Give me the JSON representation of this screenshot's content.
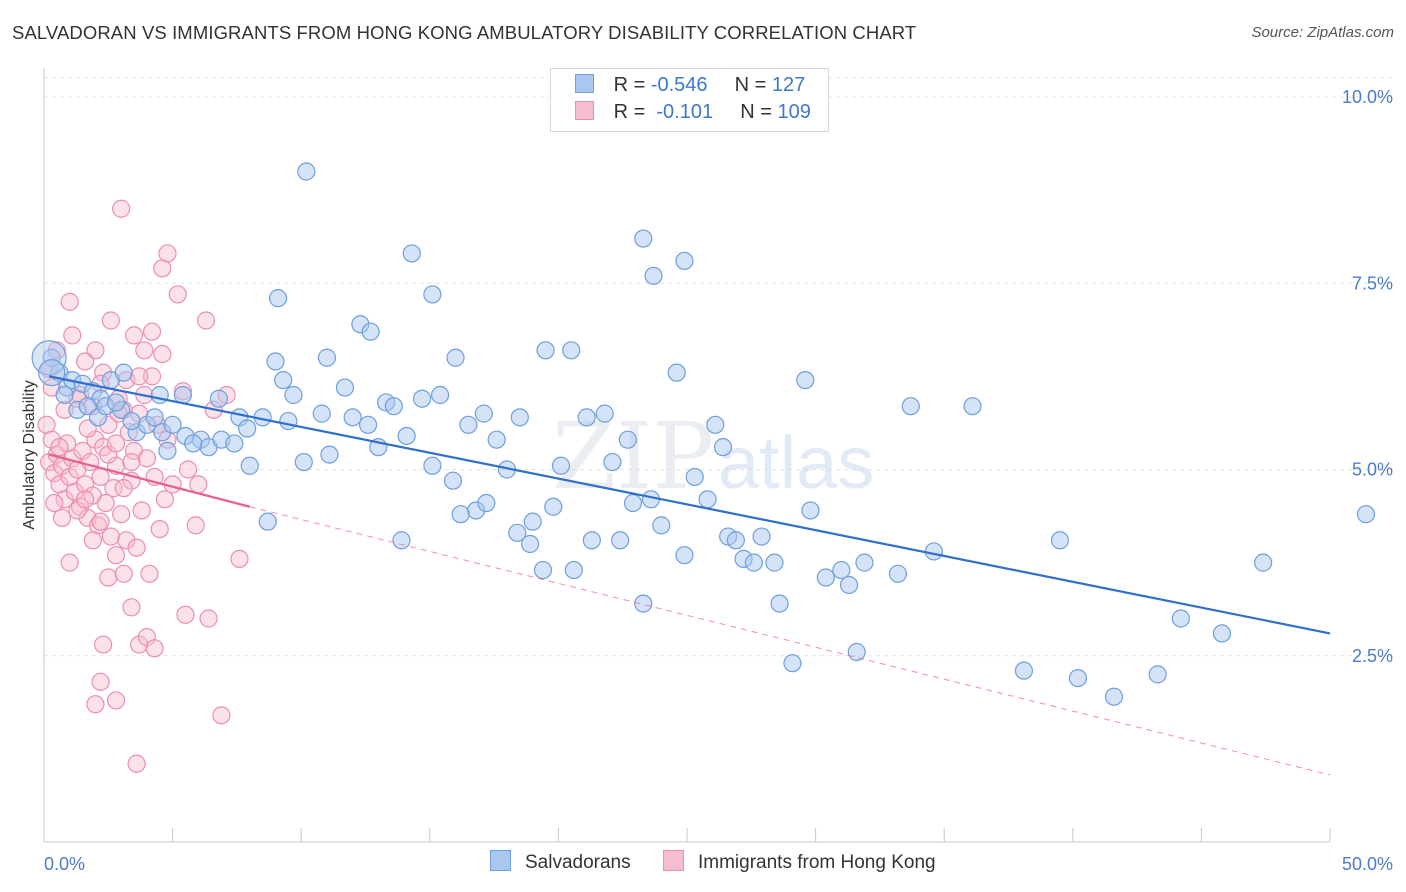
{
  "title": "SALVADORAN VS IMMIGRANTS FROM HONG KONG AMBULATORY DISABILITY CORRELATION CHART",
  "source": "Source: ZipAtlas.com",
  "watermark": {
    "zip": "ZIP",
    "atlas": "atlas"
  },
  "legend": {
    "rows": [
      {
        "r_label": "R =",
        "r_value": "-0.546",
        "n_label": "N =",
        "n_value": "127"
      },
      {
        "r_label": "R =",
        "r_value": " -0.101",
        "n_label": "N =",
        "n_value": "109"
      }
    ]
  },
  "bottom_legend": {
    "series1": "Salvadorans",
    "series2": "Immigrants from Hong Kong"
  },
  "colors": {
    "blue_fill": "#aac8ef",
    "blue_stroke": "#6f9fdc",
    "blue_line": "#2f6fce",
    "pink_fill": "#f6bcd0",
    "pink_stroke": "#ec8eb0",
    "pink_line": "#e8608f",
    "tick_text": "#4a7cc7",
    "grid": "#e4e4e4"
  },
  "chart_data": {
    "type": "scatter",
    "title": "SALVADORAN VS IMMIGRANTS FROM HONG KONG AMBULATORY DISABILITY CORRELATION CHART",
    "xlabel": "",
    "ylabel": "Ambulatory Disability",
    "xlim": [
      0,
      50
    ],
    "ylim": [
      0,
      10.5
    ],
    "x_tick_labels": [
      "0.0%",
      "50.0%"
    ],
    "y_ticks": [
      2.5,
      5.0,
      7.5,
      10.0
    ],
    "y_tick_labels": [
      "2.5%",
      "5.0%",
      "7.5%",
      "10.0%"
    ],
    "grid": true,
    "series": [
      {
        "name": "Salvadorans",
        "R": -0.546,
        "N": 127,
        "trend": {
          "x": [
            0.2,
            50
          ],
          "y": [
            6.25,
            2.8
          ]
        },
        "points": [
          [
            0.3,
            6.5
          ],
          [
            0.6,
            6.3
          ],
          [
            0.9,
            6.1
          ],
          [
            1.1,
            6.2
          ],
          [
            1.5,
            6.15
          ],
          [
            1.9,
            6.05
          ],
          [
            2.2,
            5.95
          ],
          [
            2.6,
            6.2
          ],
          [
            0.8,
            6.0
          ],
          [
            1.3,
            5.8
          ],
          [
            1.7,
            5.85
          ],
          [
            2.1,
            5.7
          ],
          [
            2.4,
            5.85
          ],
          [
            3.0,
            5.8
          ],
          [
            3.6,
            5.5
          ],
          [
            4.0,
            5.6
          ],
          [
            4.3,
            5.7
          ],
          [
            4.6,
            5.5
          ],
          [
            5.0,
            5.6
          ],
          [
            5.5,
            5.45
          ],
          [
            6.1,
            5.4
          ],
          [
            6.4,
            5.3
          ],
          [
            6.9,
            5.4
          ],
          [
            7.4,
            5.35
          ],
          [
            7.6,
            5.7
          ],
          [
            8.0,
            5.05
          ],
          [
            8.7,
            4.3
          ],
          [
            9.0,
            6.45
          ],
          [
            9.3,
            6.2
          ],
          [
            9.5,
            5.65
          ],
          [
            10.1,
            5.1
          ],
          [
            10.8,
            5.75
          ],
          [
            11.1,
            5.2
          ],
          [
            11.7,
            6.1
          ],
          [
            12.3,
            6.95
          ],
          [
            12.7,
            6.85
          ],
          [
            13.0,
            5.3
          ],
          [
            13.3,
            5.9
          ],
          [
            13.6,
            5.85
          ],
          [
            12.6,
            5.6
          ],
          [
            14.1,
            5.45
          ],
          [
            14.7,
            5.95
          ],
          [
            15.1,
            5.05
          ],
          [
            15.4,
            6.0
          ],
          [
            15.9,
            4.85
          ],
          [
            16.5,
            5.6
          ],
          [
            16.8,
            4.45
          ],
          [
            17.2,
            4.55
          ],
          [
            17.6,
            5.4
          ],
          [
            18.0,
            5.0
          ],
          [
            18.4,
            4.15
          ],
          [
            18.9,
            4.0
          ],
          [
            19.4,
            3.65
          ],
          [
            19.8,
            4.5
          ],
          [
            20.1,
            5.05
          ],
          [
            20.6,
            3.65
          ],
          [
            21.3,
            4.05
          ],
          [
            21.8,
            5.75
          ],
          [
            22.1,
            5.1
          ],
          [
            22.4,
            4.05
          ],
          [
            22.9,
            4.55
          ],
          [
            23.3,
            3.2
          ],
          [
            23.6,
            4.6
          ],
          [
            24.0,
            4.25
          ],
          [
            24.6,
            6.3
          ],
          [
            24.9,
            3.85
          ],
          [
            25.3,
            4.9
          ],
          [
            25.8,
            4.6
          ],
          [
            26.1,
            5.6
          ],
          [
            26.6,
            4.1
          ],
          [
            27.2,
            3.8
          ],
          [
            27.6,
            3.75
          ],
          [
            27.9,
            4.1
          ],
          [
            28.6,
            3.2
          ],
          [
            29.1,
            2.4
          ],
          [
            29.8,
            4.45
          ],
          [
            30.4,
            3.55
          ],
          [
            31.0,
            3.65
          ],
          [
            31.3,
            3.45
          ],
          [
            31.6,
            2.55
          ],
          [
            33.2,
            3.6
          ],
          [
            33.7,
            5.85
          ],
          [
            34.6,
            3.9
          ],
          [
            36.1,
            5.85
          ],
          [
            38.1,
            2.3
          ],
          [
            39.5,
            4.05
          ],
          [
            40.2,
            2.2
          ],
          [
            41.6,
            1.95
          ],
          [
            43.3,
            2.25
          ],
          [
            44.2,
            3.0
          ],
          [
            45.8,
            2.8
          ],
          [
            47.4,
            3.75
          ],
          [
            51.4,
            4.4
          ],
          [
            10.2,
            9.0
          ],
          [
            14.3,
            7.9
          ],
          [
            15.1,
            7.35
          ],
          [
            23.7,
            7.6
          ],
          [
            24.9,
            7.8
          ],
          [
            23.3,
            8.1
          ],
          [
            9.1,
            7.3
          ],
          [
            19.5,
            6.6
          ],
          [
            26.4,
            5.3
          ],
          [
            29.6,
            6.2
          ],
          [
            21.1,
            5.7
          ],
          [
            20.5,
            6.6
          ],
          [
            16.0,
            6.5
          ],
          [
            11.0,
            6.5
          ],
          [
            6.8,
            5.95
          ],
          [
            5.4,
            6.0
          ],
          [
            3.1,
            6.3
          ],
          [
            4.8,
            5.25
          ],
          [
            7.9,
            5.55
          ],
          [
            18.5,
            5.7
          ],
          [
            17.1,
            5.75
          ],
          [
            22.7,
            5.4
          ],
          [
            2.8,
            5.9
          ],
          [
            3.4,
            5.65
          ],
          [
            4.5,
            6.0
          ],
          [
            5.8,
            5.35
          ],
          [
            8.5,
            5.7
          ],
          [
            9.7,
            6.0
          ],
          [
            12.0,
            5.7
          ],
          [
            13.9,
            4.05
          ],
          [
            16.2,
            4.4
          ],
          [
            19.0,
            4.3
          ],
          [
            26.9,
            4.05
          ],
          [
            28.4,
            3.75
          ],
          [
            31.9,
            3.75
          ]
        ]
      },
      {
        "name": "Immigrants from Hong Kong",
        "R": -0.101,
        "N": 109,
        "trend_solid": {
          "x": [
            0.2,
            8.0
          ],
          "y": [
            5.2,
            4.5
          ]
        },
        "trend_dashed": {
          "x": [
            8.0,
            50
          ],
          "y": [
            4.5,
            0.9
          ]
        },
        "points": [
          [
            0.1,
            5.6
          ],
          [
            0.2,
            5.1
          ],
          [
            0.3,
            5.4
          ],
          [
            0.4,
            4.95
          ],
          [
            0.5,
            5.2
          ],
          [
            0.6,
            4.8
          ],
          [
            0.7,
            5.05
          ],
          [
            0.8,
            4.6
          ],
          [
            0.9,
            5.35
          ],
          [
            1.0,
            4.9
          ],
          [
            1.1,
            5.15
          ],
          [
            1.2,
            4.7
          ],
          [
            1.3,
            5.0
          ],
          [
            1.4,
            4.5
          ],
          [
            1.5,
            5.25
          ],
          [
            1.6,
            4.8
          ],
          [
            1.7,
            4.35
          ],
          [
            1.8,
            5.1
          ],
          [
            1.9,
            4.65
          ],
          [
            2.0,
            5.4
          ],
          [
            2.1,
            4.25
          ],
          [
            2.2,
            4.9
          ],
          [
            2.3,
            5.3
          ],
          [
            2.4,
            4.55
          ],
          [
            2.5,
            5.6
          ],
          [
            2.6,
            4.1
          ],
          [
            2.7,
            4.75
          ],
          [
            2.8,
            5.05
          ],
          [
            2.9,
            5.95
          ],
          [
            3.0,
            4.4
          ],
          [
            3.1,
            5.8
          ],
          [
            3.2,
            4.05
          ],
          [
            3.3,
            5.5
          ],
          [
            3.4,
            4.85
          ],
          [
            3.5,
            5.25
          ],
          [
            3.6,
            3.95
          ],
          [
            3.7,
            5.75
          ],
          [
            3.8,
            4.45
          ],
          [
            3.9,
            6.0
          ],
          [
            4.0,
            5.15
          ],
          [
            4.1,
            3.6
          ],
          [
            4.2,
            6.25
          ],
          [
            4.3,
            4.9
          ],
          [
            4.4,
            5.6
          ],
          [
            4.5,
            4.2
          ],
          [
            4.6,
            6.55
          ],
          [
            4.7,
            4.6
          ],
          [
            4.8,
            5.4
          ],
          [
            5.0,
            4.8
          ],
          [
            5.2,
            7.35
          ],
          [
            5.4,
            6.05
          ],
          [
            5.6,
            5.0
          ],
          [
            5.9,
            4.25
          ],
          [
            6.0,
            4.8
          ],
          [
            6.3,
            7.0
          ],
          [
            6.6,
            5.8
          ],
          [
            7.1,
            6.0
          ],
          [
            7.6,
            3.8
          ],
          [
            0.3,
            6.1
          ],
          [
            0.5,
            6.6
          ],
          [
            0.8,
            5.8
          ],
          [
            1.1,
            6.8
          ],
          [
            1.4,
            6.0
          ],
          [
            1.7,
            5.55
          ],
          [
            2.0,
            6.6
          ],
          [
            2.3,
            6.3
          ],
          [
            2.6,
            7.0
          ],
          [
            2.9,
            5.75
          ],
          [
            3.2,
            6.2
          ],
          [
            3.5,
            6.8
          ],
          [
            3.9,
            6.6
          ],
          [
            4.2,
            6.85
          ],
          [
            0.2,
            6.35
          ],
          [
            0.6,
            5.3
          ],
          [
            1.0,
            7.25
          ],
          [
            1.3,
            5.95
          ],
          [
            1.6,
            6.45
          ],
          [
            1.9,
            5.85
          ],
          [
            2.2,
            6.15
          ],
          [
            2.5,
            5.2
          ],
          [
            2.8,
            5.35
          ],
          [
            3.1,
            4.75
          ],
          [
            3.4,
            5.1
          ],
          [
            3.7,
            6.25
          ],
          [
            0.4,
            4.55
          ],
          [
            0.7,
            4.35
          ],
          [
            1.0,
            3.75
          ],
          [
            1.3,
            4.45
          ],
          [
            1.6,
            4.6
          ],
          [
            1.9,
            4.05
          ],
          [
            2.2,
            4.3
          ],
          [
            2.5,
            3.55
          ],
          [
            2.8,
            3.85
          ],
          [
            3.1,
            3.6
          ],
          [
            3.4,
            3.15
          ],
          [
            3.7,
            2.65
          ],
          [
            4.0,
            2.75
          ],
          [
            4.3,
            2.6
          ],
          [
            2.3,
            2.65
          ],
          [
            2.2,
            2.15
          ],
          [
            2.0,
            1.85
          ],
          [
            2.8,
            1.9
          ],
          [
            3.6,
            1.05
          ],
          [
            6.4,
            3.0
          ],
          [
            5.5,
            3.05
          ],
          [
            6.9,
            1.7
          ],
          [
            3.0,
            8.5
          ],
          [
            4.6,
            7.7
          ],
          [
            4.8,
            7.9
          ]
        ]
      }
    ]
  }
}
